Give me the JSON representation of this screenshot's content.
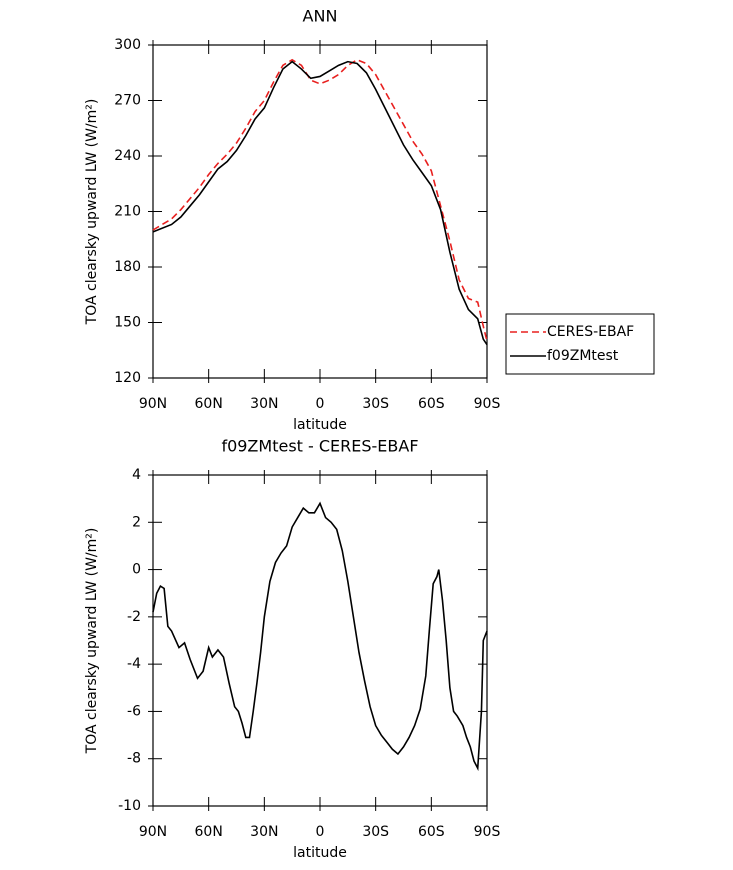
{
  "chart_data": [
    {
      "type": "line",
      "title": "ANN",
      "x_label": "latitude",
      "y_label": "TOA clearsky upward LW (W/m²)",
      "x": [
        90,
        80,
        75,
        70,
        65,
        60,
        55,
        50,
        45,
        40,
        35,
        30,
        25,
        20,
        15,
        10,
        5,
        0,
        -5,
        -10,
        -15,
        -20,
        -25,
        -30,
        -35,
        -40,
        -45,
        -50,
        -55,
        -60,
        -65,
        -70,
        -75,
        -80,
        -85,
        -88,
        -90
      ],
      "series": [
        {
          "name": "CERES-EBAF",
          "color": "#e8201f",
          "line_style": "dashed",
          "values": [
            200,
            206,
            211,
            217,
            223,
            230,
            236,
            241,
            247,
            255,
            264,
            270,
            280,
            289,
            292,
            289,
            281,
            279,
            281,
            284,
            289,
            292,
            290,
            284,
            275,
            266,
            257,
            248,
            241,
            232,
            213,
            194,
            173,
            163,
            161,
            148,
            140
          ]
        },
        {
          "name": "f09ZMtest",
          "color": "#000000",
          "line_style": "solid",
          "values": [
            199,
            203,
            207,
            213,
            219,
            226,
            233,
            237,
            243,
            251,
            260,
            266,
            277,
            287,
            291,
            287,
            282,
            283,
            286,
            289,
            291,
            290,
            285,
            276,
            266,
            256,
            246,
            238,
            231,
            224,
            211,
            188,
            168,
            157,
            152,
            141,
            138
          ]
        }
      ],
      "xlim": [
        90,
        -90
      ],
      "xticks": [
        {
          "value": 90,
          "label": "90N"
        },
        {
          "value": 60,
          "label": "60N"
        },
        {
          "value": 30,
          "label": "30N"
        },
        0,
        {
          "value": -30,
          "label": "30S"
        },
        {
          "value": -60,
          "label": "60S"
        },
        {
          "value": -90,
          "label": "90S"
        }
      ],
      "ylim": [
        120,
        300
      ],
      "yticks": [
        120,
        150,
        180,
        210,
        240,
        270,
        300
      ],
      "grid": false,
      "legend": "right"
    },
    {
      "type": "line",
      "title": "f09ZMtest - CERES-EBAF",
      "x_label": "latitude",
      "y_label": "TOA clearsky upward LW (W/m²)",
      "x": [
        90,
        88,
        86,
        84,
        82,
        80,
        76,
        73,
        70,
        66,
        63,
        60,
        58,
        55,
        52,
        49,
        46,
        44,
        42,
        40,
        38,
        36,
        34,
        32,
        30,
        27,
        24,
        21,
        18,
        15,
        12,
        9,
        6,
        3,
        0,
        -3,
        -6,
        -9,
        -12,
        -15,
        -18,
        -21,
        -24,
        -27,
        -30,
        -33,
        -36,
        -39,
        -42,
        -45,
        -48,
        -51,
        -54,
        -57,
        -59,
        -61,
        -63,
        -64,
        -66,
        -68,
        -70,
        -72,
        -74,
        -77,
        -79,
        -81,
        -83,
        -85,
        -87,
        -88,
        -90
      ],
      "values": [
        -1.8,
        -1.0,
        -0.7,
        -0.8,
        -2.4,
        -2.6,
        -3.3,
        -3.1,
        -3.8,
        -4.6,
        -4.3,
        -3.3,
        -3.7,
        -3.4,
        -3.7,
        -4.8,
        -5.8,
        -6.0,
        -6.5,
        -7.1,
        -7.1,
        -6.0,
        -4.8,
        -3.5,
        -2.0,
        -0.5,
        0.3,
        0.7,
        1.0,
        1.8,
        2.2,
        2.6,
        2.4,
        2.4,
        2.8,
        2.2,
        2.0,
        1.7,
        0.8,
        -0.5,
        -2.0,
        -3.5,
        -4.7,
        -5.8,
        -6.6,
        -7.0,
        -7.3,
        -7.6,
        -7.8,
        -7.5,
        -7.1,
        -6.6,
        -5.9,
        -4.5,
        -2.5,
        -0.6,
        -0.3,
        0.0,
        -1.3,
        -3.0,
        -5.0,
        -6.0,
        -6.2,
        -6.6,
        -7.1,
        -7.5,
        -8.1,
        -8.4,
        -6.0,
        -3.0,
        -2.6
      ],
      "color": "#000000",
      "xlim": [
        90,
        -90
      ],
      "xticks": [
        {
          "value": 90,
          "label": "90N"
        },
        {
          "value": 60,
          "label": "60N"
        },
        {
          "value": 30,
          "label": "30N"
        },
        0,
        {
          "value": -30,
          "label": "30S"
        },
        {
          "value": -60,
          "label": "60S"
        },
        {
          "value": -90,
          "label": "90S"
        }
      ],
      "ylim": [
        -10,
        4
      ],
      "yticks": [
        -10,
        -8,
        -6,
        -4,
        -2,
        0,
        2,
        4
      ],
      "grid": false
    }
  ]
}
